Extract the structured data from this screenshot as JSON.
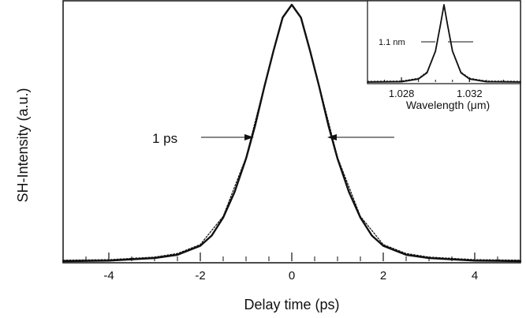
{
  "chart_data": [
    {
      "type": "line",
      "xlabel": "Delay time (ps)",
      "ylabel": "SH-Intensity (a.u.)",
      "xlim": [
        -5,
        5
      ],
      "ylim": [
        0,
        1.0
      ],
      "x_ticks": [
        -4,
        -2,
        0,
        2,
        4
      ],
      "x_tick_labels": [
        "-4",
        "-2",
        "0",
        "2",
        "4"
      ],
      "grid": false,
      "series": [
        {
          "style": "solid",
          "x": [
            -5.0,
            -4.0,
            -3.0,
            -2.5,
            -2.0,
            -1.75,
            -1.5,
            -1.25,
            -1.0,
            -0.8,
            -0.6,
            -0.4,
            -0.2,
            0.0,
            0.2,
            0.4,
            0.6,
            0.8,
            1.0,
            1.25,
            1.5,
            1.75,
            2.0,
            2.5,
            3.0,
            4.0,
            5.0
          ],
          "y": [
            0.0,
            0.002,
            0.012,
            0.025,
            0.06,
            0.1,
            0.17,
            0.27,
            0.4,
            0.53,
            0.68,
            0.82,
            0.95,
            1.0,
            0.95,
            0.82,
            0.68,
            0.53,
            0.4,
            0.27,
            0.17,
            0.1,
            0.06,
            0.025,
            0.012,
            0.002,
            0.0
          ]
        },
        {
          "style": "dotted",
          "x": [
            -5.0,
            -4.0,
            -3.0,
            -2.5,
            -2.0,
            -1.5,
            -1.0,
            -0.6,
            -0.2,
            0.0,
            0.2,
            0.6,
            1.0,
            1.5,
            2.0,
            2.5,
            3.0,
            4.0,
            5.0
          ],
          "y": [
            0.004,
            0.006,
            0.016,
            0.03,
            0.065,
            0.175,
            0.405,
            0.685,
            0.95,
            1.0,
            0.95,
            0.685,
            0.405,
            0.175,
            0.065,
            0.03,
            0.016,
            0.006,
            0.004
          ]
        }
      ],
      "annotations": [
        {
          "text": "1 ps",
          "x": -0.8,
          "y": 0.49
        }
      ]
    },
    {
      "type": "line",
      "inset": true,
      "xlabel": "Wavelength (μm)",
      "xlim": [
        1.026,
        1.035
      ],
      "ylim": [
        0,
        1.0
      ],
      "x_ticks": [
        1.028,
        1.032
      ],
      "x_tick_labels": [
        "1.028",
        "1.032"
      ],
      "series": [
        {
          "style": "solid",
          "x": [
            1.026,
            1.028,
            1.029,
            1.0295,
            1.03,
            1.0303,
            1.0305,
            1.0307,
            1.031,
            1.0315,
            1.032,
            1.033,
            1.035
          ],
          "y": [
            0.0,
            0.004,
            0.04,
            0.12,
            0.4,
            0.75,
            1.0,
            0.75,
            0.4,
            0.12,
            0.04,
            0.004,
            0.0
          ]
        },
        {
          "style": "dotted",
          "x": [
            1.026,
            1.028,
            1.029,
            1.0295,
            1.03,
            1.0305,
            1.031,
            1.0315,
            1.032,
            1.033,
            1.035
          ],
          "y": [
            0.01,
            0.014,
            0.05,
            0.13,
            0.41,
            1.0,
            0.41,
            0.13,
            0.05,
            0.014,
            0.01
          ]
        }
      ],
      "annotations": [
        {
          "text": "1.1 nm",
          "x": 1.0305,
          "y": 0.5
        }
      ]
    }
  ]
}
